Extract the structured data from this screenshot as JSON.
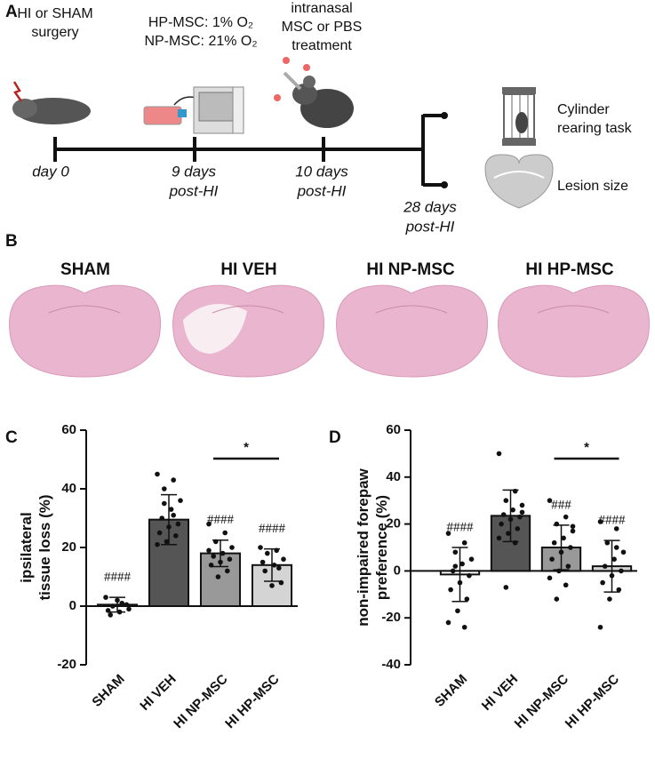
{
  "panel_labels": [
    "A",
    "B",
    "C",
    "D"
  ],
  "timeline": {
    "events": [
      {
        "text": [
          "HI or SHAM",
          "surgery"
        ],
        "time": [
          "day 0"
        ]
      },
      {
        "text": [
          "HP-MSC: 1% O₂",
          "NP-MSC: 21% O₂"
        ],
        "time": [
          "9 days",
          "post-HI"
        ]
      },
      {
        "text": [
          "intranasal",
          "MSC or PBS",
          "treatment"
        ],
        "time": [
          "10 days",
          "post-HI"
        ]
      }
    ],
    "endpoint": {
      "time": [
        "28 days",
        "post-HI"
      ],
      "outcomes": [
        [
          "Cylinder",
          "rearing task"
        ],
        [
          "Lesion size"
        ]
      ]
    }
  },
  "histology": {
    "groups": [
      "SHAM",
      "HI VEH",
      "HI NP-MSC",
      "HI HP-MSC"
    ]
  },
  "chart_data": [
    {
      "type": "bar",
      "ylabel": [
        "ipsilateral",
        "tissue loss (%)"
      ],
      "categories": [
        "SHAM",
        "HI VEH",
        "HI NP-MSC",
        "HI HP-MSC"
      ],
      "values": [
        0.5,
        29.5,
        18,
        14
      ],
      "errors": [
        2.5,
        8.5,
        4.5,
        5.5
      ],
      "colors": [
        "#ffffff",
        "#555555",
        "#999999",
        "#d4d4d4"
      ],
      "points": [
        [
          3,
          1,
          0,
          -1,
          -2,
          -3,
          0.5,
          2,
          -1.5
        ],
        [
          45,
          43,
          40,
          36,
          33,
          30,
          28,
          27,
          25,
          24,
          22,
          21,
          31,
          35
        ],
        [
          28,
          25,
          22,
          20,
          18,
          17,
          16,
          15,
          14,
          12,
          10,
          19
        ],
        [
          20,
          19,
          18,
          16,
          14,
          12,
          8,
          7,
          15,
          13
        ]
      ],
      "annotations": [
        "####",
        null,
        "####",
        "####"
      ],
      "significance": {
        "categories": [
          2,
          3
        ],
        "label": "*"
      },
      "ylim": [
        -20,
        60
      ],
      "yticks": [
        -20,
        0,
        20,
        40,
        60
      ]
    },
    {
      "type": "bar",
      "ylabel": [
        "non-impaired forepaw",
        "preference (%)"
      ],
      "categories": [
        "SHAM",
        "HI VEH",
        "HI NP-MSC",
        "HI HP-MSC"
      ],
      "values": [
        -1.5,
        23.5,
        10,
        2
      ],
      "errors": [
        11.5,
        11,
        9.5,
        11
      ],
      "colors": [
        "#ffffff",
        "#555555",
        "#999999",
        "#d4d4d4"
      ],
      "points": [
        [
          16,
          12,
          8,
          5,
          3,
          0,
          -2,
          -5,
          -8,
          -12,
          -17,
          -22,
          -24,
          2
        ],
        [
          50,
          34,
          30,
          28,
          26,
          24,
          23,
          22,
          20,
          18,
          16,
          14,
          12,
          -7,
          25
        ],
        [
          30,
          23,
          20,
          17,
          14,
          12,
          10,
          8,
          5,
          2,
          0,
          -3,
          -6,
          -12,
          19
        ],
        [
          21,
          18,
          12,
          8,
          5,
          2,
          0,
          -2,
          -5,
          -8,
          -12,
          -24,
          10
        ]
      ],
      "annotations": [
        "####",
        null,
        "###",
        "####"
      ],
      "significance": {
        "categories": [
          2,
          3
        ],
        "label": "*"
      },
      "ylim": [
        -40,
        60
      ],
      "yticks": [
        -40,
        -20,
        0,
        20,
        40,
        60
      ]
    }
  ]
}
